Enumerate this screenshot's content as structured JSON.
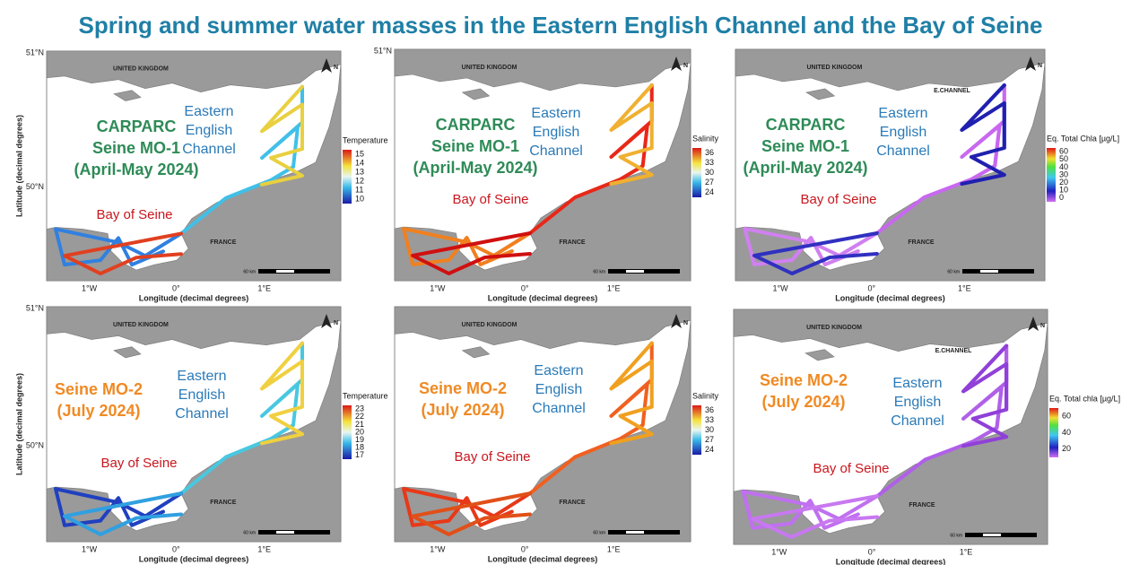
{
  "title": "Spring and summer water masses in the Eastern English Channel and the Bay of Seine",
  "panels": [
    {
      "campaign": [
        "CARPARC",
        "Seine MO-1",
        "(April-May 2024)"
      ],
      "region": [
        "Eastern",
        "English",
        "Channel"
      ],
      "bay": "Bay of Seine",
      "uk": "UNITED KINGDOM",
      "france": "FRANCE",
      "north": "N",
      "scale": "60 km",
      "x_label": "Longitude (decimal degrees)",
      "y_label": "Latitude (decimal degrees)",
      "lat_ticks": [
        "51°N",
        "50°N"
      ],
      "lon_ticks": [
        "1°W",
        "0°",
        "1°E"
      ],
      "legend": {
        "title": "Temperature",
        "ticks": [
          15,
          14,
          13,
          12,
          11,
          10
        ]
      }
    },
    {
      "campaign": [
        "CARPARC",
        "Seine MO-1",
        "(April-May 2024)"
      ],
      "region": [
        "Eastern",
        "English",
        "Channel"
      ],
      "bay": "Bay of Seine",
      "uk": "UNITED KINGDOM",
      "france": "FRANCE",
      "north": "N",
      "scale": "60 km",
      "x_label": "Longitude (decimal degrees)",
      "lat_ticks": [
        "51°N"
      ],
      "lon_ticks": [
        "1°W",
        "0°",
        "1°E"
      ],
      "legend": {
        "title": "Salinity",
        "ticks": [
          36,
          33,
          30,
          27,
          24
        ]
      }
    },
    {
      "campaign": [
        "CARPARC",
        "Seine MO-1",
        "(April-May 2024)"
      ],
      "region": [
        "Eastern",
        "English",
        "Channel"
      ],
      "bay": "Bay of Seine",
      "uk": "UNITED KINGDOM",
      "france": "FRANCE",
      "extra": "E.CHANNEL",
      "north": "N",
      "scale": "60 km",
      "x_label": "Longitude (decimal degrees)",
      "lat_ticks": [],
      "lon_ticks": [
        "1°W",
        "0°",
        "1°E"
      ],
      "legend": {
        "title": "Eq. Total Chla [µg/L]",
        "ticks": [
          60,
          50,
          40,
          30,
          20,
          10,
          0
        ]
      }
    },
    {
      "campaign": [
        "Seine MO-2",
        "(July 2024)"
      ],
      "region": [
        "Eastern",
        "English",
        "Channel"
      ],
      "bay": "Bay of Seine",
      "uk": "UNITED KINGDOM",
      "france": "FRANCE",
      "north": "N",
      "scale": "60 km",
      "x_label": "Longitude (decimal degrees)",
      "y_label": "Latitude (decimal degrees)",
      "lat_ticks": [
        "51°N",
        "50°N"
      ],
      "lon_ticks": [
        "1°W",
        "0°",
        "1°E"
      ],
      "legend": {
        "title": "Temperature",
        "ticks": [
          23,
          22,
          21,
          20,
          19,
          18,
          17
        ]
      }
    },
    {
      "campaign": [
        "Seine MO-2",
        "(July 2024)"
      ],
      "region": [
        "Eastern",
        "English",
        "Channel"
      ],
      "bay": "Bay of Seine",
      "uk": "UNITED KINGDOM",
      "france": "FRANCE",
      "north": "N",
      "scale": "60 km",
      "x_label": "Longitude (decimal degrees)",
      "lat_ticks": [],
      "lon_ticks": [
        "1°W",
        "0°",
        "1°E"
      ],
      "legend": {
        "title": "Salinity",
        "ticks": [
          36,
          33,
          30,
          27,
          24
        ]
      }
    },
    {
      "campaign": [
        "Seine MO-2",
        "(July 2024)"
      ],
      "region": [
        "Eastern",
        "English",
        "Channel"
      ],
      "bay": "Bay of Seine",
      "uk": "UNITED KINGDOM",
      "france": "FRANCE",
      "extra": "E.CHANNEL",
      "north": "N",
      "scale": "60 km",
      "x_label": "Longitude (decimal degrees)",
      "lat_ticks": [],
      "lon_ticks": [
        "1°W",
        "0°",
        "1°E"
      ],
      "legend": {
        "title": "Eq. Total chla [µg/L]",
        "ticks": [
          60,
          40,
          20
        ]
      }
    }
  ]
}
